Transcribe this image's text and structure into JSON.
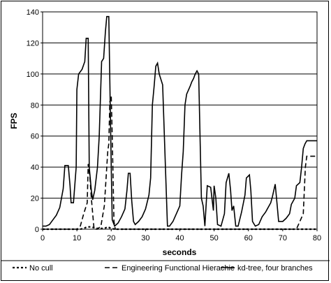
{
  "chart_data": {
    "type": "line",
    "title": "",
    "xlabel": "seconds",
    "ylabel": "FPS",
    "xlim": [
      0,
      80
    ],
    "ylim": [
      0,
      140
    ],
    "x_ticks": [
      "0",
      "10",
      "20",
      "30",
      "40",
      "50",
      "60",
      "70",
      "80"
    ],
    "y_ticks": [
      "0",
      "20",
      "40",
      "60",
      "80",
      "100",
      "120",
      "140"
    ],
    "grid": "horizontal",
    "legend_position": "bottom",
    "colors": {
      "line": "#000000",
      "grid": "#000000",
      "background": "#ffffff"
    },
    "series": [
      {
        "name": "No cull",
        "style": "dotted",
        "points": [
          [
            0,
            0
          ],
          [
            11,
            0
          ],
          [
            12,
            0.5
          ],
          [
            13,
            1.5
          ],
          [
            14,
            1.5
          ],
          [
            16,
            0.5
          ],
          [
            18,
            0.5
          ],
          [
            19,
            1.5
          ],
          [
            20,
            0.5
          ],
          [
            21,
            0
          ],
          [
            80,
            0
          ]
        ]
      },
      {
        "name": "Engineering Functional Hierachie",
        "style": "dashed",
        "points": [
          [
            0,
            0
          ],
          [
            10,
            0
          ],
          [
            11,
            2
          ],
          [
            12,
            10
          ],
          [
            13,
            17
          ],
          [
            13.3,
            42
          ],
          [
            13.8,
            33
          ],
          [
            14.2,
            20
          ],
          [
            15,
            0
          ],
          [
            16,
            0
          ],
          [
            17,
            2
          ],
          [
            18,
            15
          ],
          [
            19,
            50
          ],
          [
            19.3,
            55
          ],
          [
            19.6,
            82
          ],
          [
            20,
            86
          ],
          [
            20.3,
            60
          ],
          [
            20.8,
            5
          ],
          [
            21.2,
            0
          ],
          [
            74,
            0
          ],
          [
            75,
            5
          ],
          [
            76,
            10
          ],
          [
            76.3,
            25
          ],
          [
            76.6,
            40
          ],
          [
            77,
            47
          ],
          [
            80,
            47
          ]
        ]
      },
      {
        "name": "kd-tree, four branches",
        "style": "solid",
        "points": [
          [
            0,
            2
          ],
          [
            1,
            2
          ],
          [
            2,
            3
          ],
          [
            3,
            6
          ],
          [
            4,
            9
          ],
          [
            5,
            14
          ],
          [
            6,
            26
          ],
          [
            6.5,
            41
          ],
          [
            7.5,
            41
          ],
          [
            8,
            28
          ],
          [
            8.3,
            17
          ],
          [
            9,
            17
          ],
          [
            9.8,
            40
          ],
          [
            10,
            90
          ],
          [
            10.5,
            100
          ],
          [
            11.5,
            103
          ],
          [
            12.3,
            108
          ],
          [
            12.7,
            123
          ],
          [
            13.3,
            123
          ],
          [
            13.6,
            40
          ],
          [
            14.2,
            25
          ],
          [
            14.6,
            19
          ],
          [
            15.2,
            25
          ],
          [
            16,
            40
          ],
          [
            16.5,
            60
          ],
          [
            17.2,
            108
          ],
          [
            17.8,
            110
          ],
          [
            18.3,
            127
          ],
          [
            18.7,
            137
          ],
          [
            19.3,
            137
          ],
          [
            19.6,
            95
          ],
          [
            20,
            40
          ],
          [
            20.3,
            6
          ],
          [
            21,
            2
          ],
          [
            22,
            4
          ],
          [
            23,
            8
          ],
          [
            24,
            13
          ],
          [
            24.6,
            25
          ],
          [
            25,
            36
          ],
          [
            25.5,
            36
          ],
          [
            26,
            18
          ],
          [
            26.5,
            5
          ],
          [
            27,
            3
          ],
          [
            28,
            5
          ],
          [
            29,
            8
          ],
          [
            30,
            13
          ],
          [
            31,
            22
          ],
          [
            31.5,
            33
          ],
          [
            32,
            80
          ],
          [
            32.5,
            92
          ],
          [
            33,
            105
          ],
          [
            33.5,
            107
          ],
          [
            34,
            100
          ],
          [
            35,
            93
          ],
          [
            35.8,
            40
          ],
          [
            36.4,
            2
          ],
          [
            37,
            2
          ],
          [
            38,
            5
          ],
          [
            39,
            10
          ],
          [
            40,
            15
          ],
          [
            40.5,
            35
          ],
          [
            41,
            50
          ],
          [
            41.5,
            80
          ],
          [
            42,
            87
          ],
          [
            43,
            92
          ],
          [
            43.5,
            95
          ],
          [
            44,
            97
          ],
          [
            44.5,
            100
          ],
          [
            45,
            102
          ],
          [
            45.5,
            100
          ],
          [
            46.3,
            20
          ],
          [
            46.8,
            15
          ],
          [
            47.3,
            2
          ],
          [
            48,
            28
          ],
          [
            49,
            27
          ],
          [
            49.8,
            12
          ],
          [
            50,
            28
          ],
          [
            50.5,
            20
          ],
          [
            51,
            3
          ],
          [
            52,
            2
          ],
          [
            53,
            10
          ],
          [
            53.5,
            30
          ],
          [
            54.3,
            36
          ],
          [
            54.8,
            25
          ],
          [
            55.2,
            12
          ],
          [
            55.7,
            15
          ],
          [
            56.3,
            2
          ],
          [
            57,
            2
          ],
          [
            58,
            11
          ],
          [
            59,
            22
          ],
          [
            59.4,
            33
          ],
          [
            60.3,
            35
          ],
          [
            60.7,
            25
          ],
          [
            61.2,
            5
          ],
          [
            62,
            2
          ],
          [
            63,
            3
          ],
          [
            64,
            8
          ],
          [
            65,
            11
          ],
          [
            66.5,
            17
          ],
          [
            67,
            21
          ],
          [
            67.8,
            29
          ],
          [
            68.2,
            20
          ],
          [
            68.8,
            5
          ],
          [
            70,
            5
          ],
          [
            71,
            7
          ],
          [
            72,
            10
          ],
          [
            72.5,
            16
          ],
          [
            73.5,
            20
          ],
          [
            74,
            28
          ],
          [
            75,
            30
          ],
          [
            75.5,
            40
          ],
          [
            76,
            52
          ],
          [
            76.5,
            55
          ],
          [
            77,
            57
          ],
          [
            78.5,
            57
          ],
          [
            80,
            57
          ]
        ]
      }
    ]
  }
}
